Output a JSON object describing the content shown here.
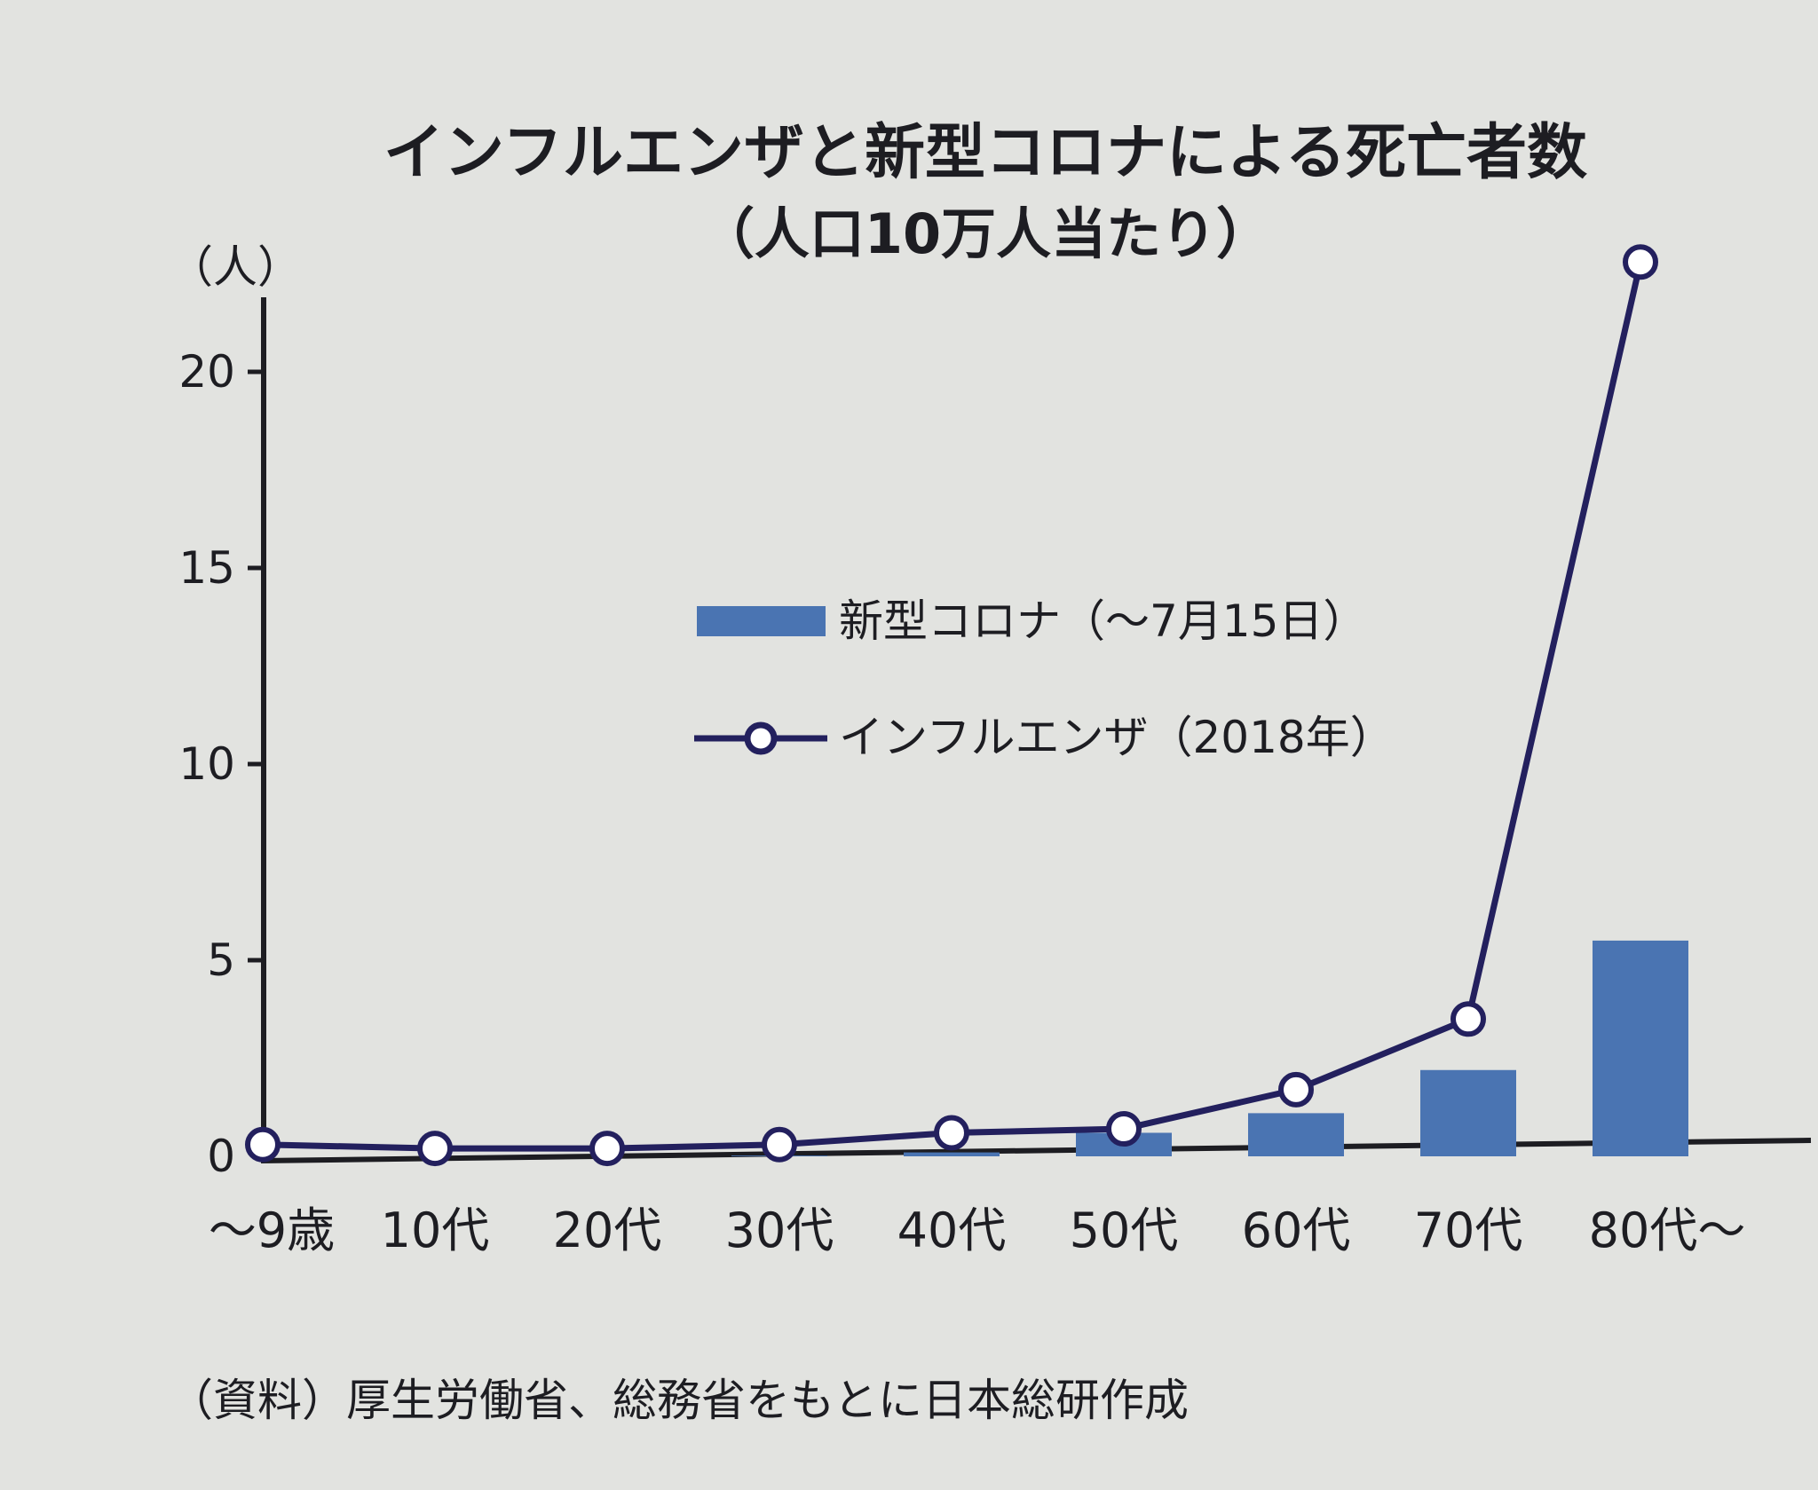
{
  "chart_data": {
    "type": "bar+line",
    "title": "インフルエンザと新型コロナによる死亡者数",
    "subtitle": "（人口10万人当たり）",
    "ylabel": "（人）",
    "ylim": [
      0,
      23
    ],
    "yticks": [
      0,
      5,
      10,
      15,
      20
    ],
    "ytick_labels": [
      "0",
      "5",
      "10",
      "15",
      "20"
    ],
    "categories": [
      "～9歳",
      "10代",
      "20代",
      "30代",
      "40代",
      "50代",
      "60代",
      "70代",
      "80代～"
    ],
    "series": [
      {
        "name": "新型コロナ（～7月15日）",
        "type": "bar",
        "color": "#4a74b2",
        "values": [
          0,
          0,
          0,
          0.02,
          0.1,
          0.6,
          1.1,
          2.2,
          5.5
        ]
      },
      {
        "name": "インフルエンザ（2018年）",
        "type": "line",
        "color": "#23205e",
        "values": [
          0.3,
          0.2,
          0.2,
          0.3,
          0.6,
          0.7,
          1.7,
          3.5,
          22.8
        ]
      }
    ],
    "legend_position": "center",
    "grid": false
  },
  "source_note": "（資料）厚生労働省、総務省をもとに日本総研作成"
}
